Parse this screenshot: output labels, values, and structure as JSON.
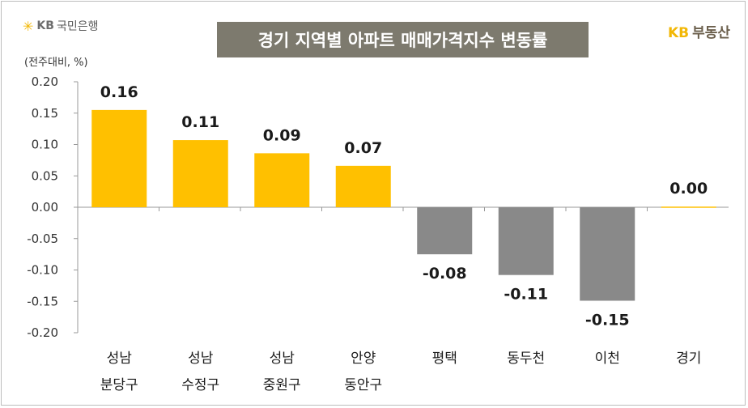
{
  "header": {
    "logo_left": "KB국민은행",
    "logo_left_kb": "KB",
    "logo_left_rest": "국민은행",
    "logo_right_kb": "KB",
    "logo_right_rest": "부동산",
    "title": "경기 지역별 아파트 매매가격지수 변동률",
    "unit": "(전주대비, %)"
  },
  "chart_data": {
    "type": "bar",
    "title": "경기 지역별 아파트 매매가격지수 변동률",
    "ylabel": "(전주대비, %)",
    "ylim": [
      -0.2,
      0.2
    ],
    "yticks": [
      "0.20",
      "0.15",
      "0.10",
      "0.05",
      "0.00",
      "-0.05",
      "-0.10",
      "-0.15",
      "-0.20"
    ],
    "categories": [
      [
        "성남",
        "분당구"
      ],
      [
        "성남",
        "수정구"
      ],
      [
        "성남",
        "중원구"
      ],
      [
        "안양",
        "동안구"
      ],
      [
        "평택"
      ],
      [
        "동두천"
      ],
      [
        "이천"
      ],
      [
        "경기"
      ]
    ],
    "values": [
      0.155,
      0.107,
      0.086,
      0.066,
      -0.075,
      -0.108,
      -0.149,
      0.001
    ],
    "data_labels": [
      "0.16",
      "0.11",
      "0.09",
      "0.07",
      "-0.08",
      "-0.11",
      "-0.15",
      "0.00"
    ],
    "colors": {
      "positive": "#ffc000",
      "negative": "#898989",
      "axis": "#999999"
    },
    "grid": false,
    "legend": "none"
  }
}
